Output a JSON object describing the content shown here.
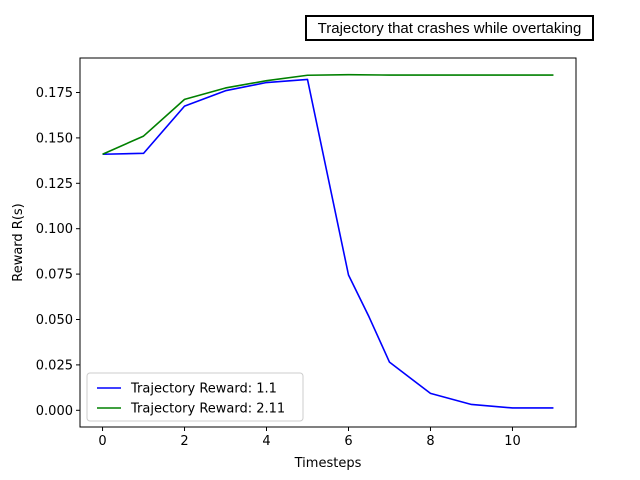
{
  "chart_data": {
    "type": "line",
    "title": "Trajectory that crashes while overtaking",
    "xlabel": "Timesteps",
    "ylabel": "Reward R(s)",
    "xlim": [
      -0.55,
      11.55
    ],
    "ylim": [
      -0.0092,
      0.194
    ],
    "x_ticks": [
      0,
      2,
      4,
      6,
      8,
      10
    ],
    "y_ticks": [
      0.0,
      0.025,
      0.05,
      0.075,
      0.1,
      0.125,
      0.15,
      0.175
    ],
    "y_tick_labels": [
      "0.000",
      "0.025",
      "0.050",
      "0.075",
      "0.100",
      "0.125",
      "0.150",
      "0.175"
    ],
    "grid": false,
    "legend_position": "lower-left",
    "series": [
      {
        "name": "Trajectory Reward: 1.1",
        "color": "#0000ff",
        "x": [
          0,
          1,
          2,
          3,
          4,
          5,
          6,
          6.5,
          7,
          8,
          9,
          10,
          11
        ],
        "y": [
          0.141,
          0.1415,
          0.1675,
          0.176,
          0.1805,
          0.1822,
          0.0745,
          0.0515,
          0.0265,
          0.0093,
          0.0032,
          0.0013,
          0.0013
        ]
      },
      {
        "name": "Trajectory Reward: 2.11",
        "color": "#008000",
        "x": [
          0,
          1,
          2,
          3,
          4,
          5,
          6,
          7,
          8,
          9,
          10,
          11
        ],
        "y": [
          0.141,
          0.151,
          0.1712,
          0.1775,
          0.1815,
          0.1845,
          0.1848,
          0.1846,
          0.1846,
          0.1846,
          0.1846,
          0.1846
        ]
      }
    ]
  }
}
